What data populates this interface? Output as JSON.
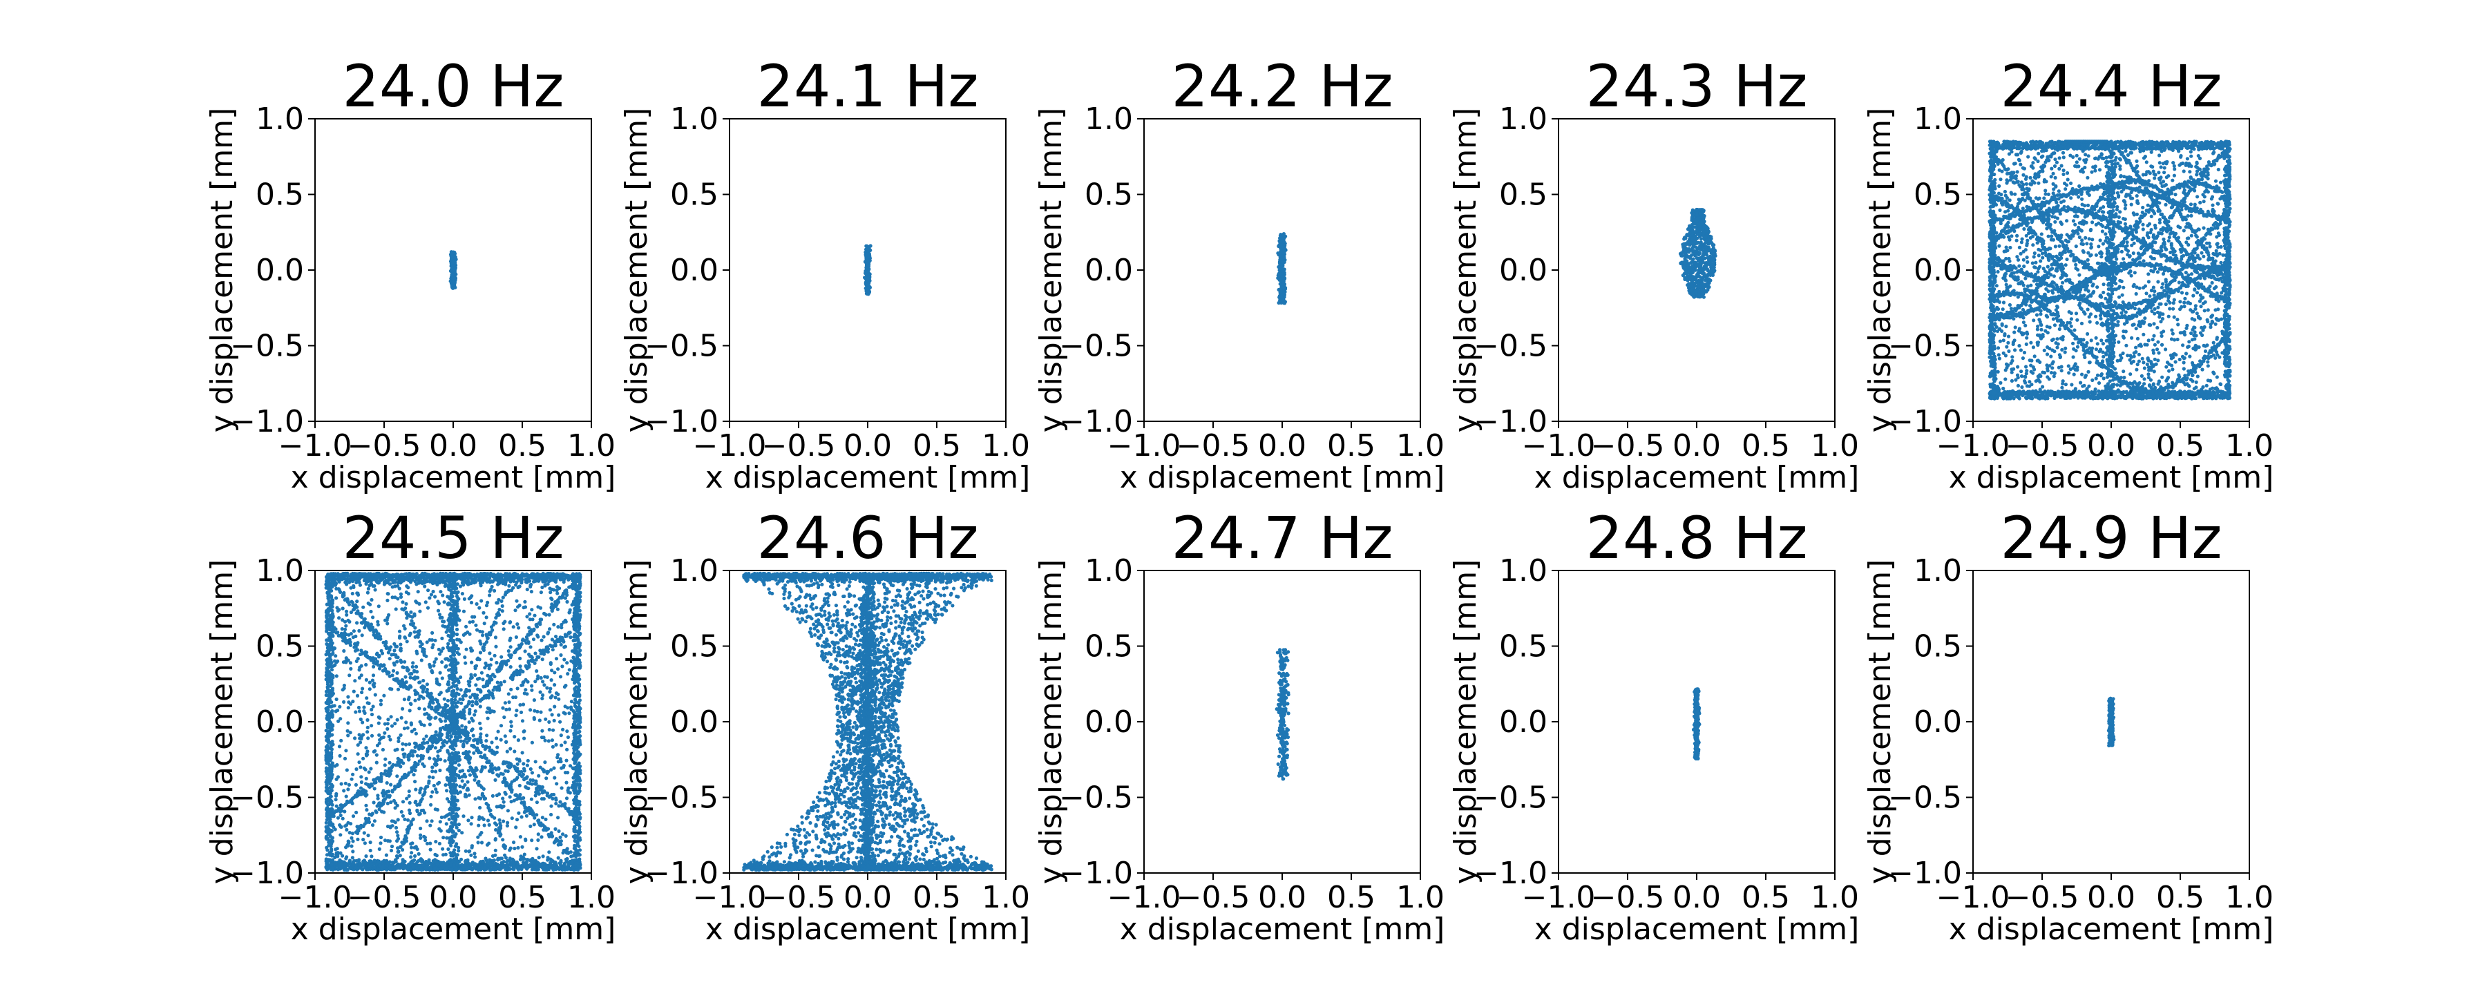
{
  "figure": {
    "point_color": "#1f77b4",
    "axis_color": "#000000"
  },
  "chart_data": [
    {
      "type": "scatter",
      "title": "24.0 Hz",
      "xlabel": "x displacement [mm]",
      "ylabel": "y displacement [mm]",
      "xlim": [
        -1.0,
        1.0
      ],
      "ylim": [
        -1.0,
        1.0
      ],
      "xticks": [
        "−1.0",
        "−0.5",
        "0.0",
        "0.5",
        "1.0"
      ],
      "yticks": [
        "−1.0",
        "−0.5",
        "0.0",
        "0.5",
        "1.0"
      ],
      "pattern": "line",
      "x_center": 0.0,
      "x_extent": [
        -0.02,
        0.02
      ],
      "y_extent": [
        -0.12,
        0.12
      ]
    },
    {
      "type": "scatter",
      "title": "24.1 Hz",
      "xlabel": "x displacement [mm]",
      "ylabel": "y displacement [mm]",
      "xlim": [
        -1.0,
        1.0
      ],
      "ylim": [
        -1.0,
        1.0
      ],
      "xticks": [
        "−1.0",
        "−0.5",
        "0.0",
        "0.5",
        "1.0"
      ],
      "yticks": [
        "−1.0",
        "−0.5",
        "0.0",
        "0.5",
        "1.0"
      ],
      "pattern": "line",
      "x_center": 0.0,
      "x_extent": [
        -0.02,
        0.02
      ],
      "y_extent": [
        -0.16,
        0.16
      ]
    },
    {
      "type": "scatter",
      "title": "24.2 Hz",
      "xlabel": "x displacement [mm]",
      "ylabel": "y displacement [mm]",
      "xlim": [
        -1.0,
        1.0
      ],
      "ylim": [
        -1.0,
        1.0
      ],
      "xticks": [
        "−1.0",
        "−0.5",
        "0.0",
        "0.5",
        "1.0"
      ],
      "yticks": [
        "−1.0",
        "−0.5",
        "0.0",
        "0.5",
        "1.0"
      ],
      "pattern": "line",
      "x_center": 0.0,
      "x_extent": [
        -0.03,
        0.03
      ],
      "y_extent": [
        -0.22,
        0.24
      ]
    },
    {
      "type": "scatter",
      "title": "24.3 Hz",
      "xlabel": "x displacement [mm]",
      "ylabel": "y displacement [mm]",
      "xlim": [
        -1.0,
        1.0
      ],
      "ylim": [
        -1.0,
        1.0
      ],
      "xticks": [
        "−1.0",
        "−0.5",
        "0.0",
        "0.5",
        "1.0"
      ],
      "yticks": [
        "−1.0",
        "−0.5",
        "0.0",
        "0.5",
        "1.0"
      ],
      "pattern": "blob",
      "x_center": 0.02,
      "x_extent": [
        -0.12,
        0.14
      ],
      "y_extent": [
        -0.18,
        0.4
      ]
    },
    {
      "type": "scatter",
      "title": "24.4 Hz",
      "xlabel": "x displacement [mm]",
      "ylabel": "y displacement [mm]",
      "xlim": [
        -1.0,
        1.0
      ],
      "ylim": [
        -1.0,
        1.0
      ],
      "xticks": [
        "−1.0",
        "−0.5",
        "0.0",
        "0.5",
        "1.0"
      ],
      "yticks": [
        "−1.0",
        "−0.5",
        "0.0",
        "0.5",
        "1.0"
      ],
      "pattern": "chaos_box",
      "x_center": 0.0,
      "x_extent": [
        -0.88,
        0.86
      ],
      "y_extent": [
        -0.85,
        0.85
      ]
    },
    {
      "type": "scatter",
      "title": "24.5 Hz",
      "xlabel": "x displacement [mm]",
      "ylabel": "y displacement [mm]",
      "xlim": [
        -1.0,
        1.0
      ],
      "ylim": [
        -1.0,
        1.0
      ],
      "xticks": [
        "−1.0",
        "−0.5",
        "0.0",
        "0.5",
        "1.0"
      ],
      "yticks": [
        "−1.0",
        "−0.5",
        "0.0",
        "0.5",
        "1.0"
      ],
      "pattern": "chaos_x",
      "x_center": 0.0,
      "x_extent": [
        -0.92,
        0.92
      ],
      "y_extent": [
        -0.98,
        0.98
      ]
    },
    {
      "type": "scatter",
      "title": "24.6 Hz",
      "xlabel": "x displacement [mm]",
      "ylabel": "y displacement [mm]",
      "xlim": [
        -1.0,
        1.0
      ],
      "ylim": [
        -1.0,
        1.0
      ],
      "xticks": [
        "−1.0",
        "−0.5",
        "0.0",
        "0.5",
        "1.0"
      ],
      "yticks": [
        "−1.0",
        "−0.5",
        "0.0",
        "0.5",
        "1.0"
      ],
      "pattern": "hourglass",
      "x_center": 0.0,
      "x_extent": [
        -0.9,
        0.9
      ],
      "y_extent": [
        -0.98,
        0.98
      ]
    },
    {
      "type": "scatter",
      "title": "24.7 Hz",
      "xlabel": "x displacement [mm]",
      "ylabel": "y displacement [mm]",
      "xlim": [
        -1.0,
        1.0
      ],
      "ylim": [
        -1.0,
        1.0
      ],
      "xticks": [
        "−1.0",
        "−0.5",
        "0.0",
        "0.5",
        "1.0"
      ],
      "yticks": [
        "−1.0",
        "−0.5",
        "0.0",
        "0.5",
        "1.0"
      ],
      "pattern": "line",
      "x_center": 0.0,
      "x_extent": [
        -0.04,
        0.05
      ],
      "y_extent": [
        -0.38,
        0.48
      ]
    },
    {
      "type": "scatter",
      "title": "24.8 Hz",
      "xlabel": "x displacement [mm]",
      "ylabel": "y displacement [mm]",
      "xlim": [
        -1.0,
        1.0
      ],
      "ylim": [
        -1.0,
        1.0
      ],
      "xticks": [
        "−1.0",
        "−0.5",
        "0.0",
        "0.5",
        "1.0"
      ],
      "yticks": [
        "−1.0",
        "−0.5",
        "0.0",
        "0.5",
        "1.0"
      ],
      "pattern": "line",
      "x_center": 0.0,
      "x_extent": [
        -0.02,
        0.02
      ],
      "y_extent": [
        -0.25,
        0.22
      ]
    },
    {
      "type": "scatter",
      "title": "24.9 Hz",
      "xlabel": "x displacement [mm]",
      "ylabel": "y displacement [mm]",
      "xlim": [
        -1.0,
        1.0
      ],
      "ylim": [
        -1.0,
        1.0
      ],
      "xticks": [
        "−1.0",
        "−0.5",
        "0.0",
        "0.5",
        "1.0"
      ],
      "yticks": [
        "−1.0",
        "−0.5",
        "0.0",
        "0.5",
        "1.0"
      ],
      "pattern": "line",
      "x_center": 0.0,
      "x_extent": [
        -0.02,
        0.02
      ],
      "y_extent": [
        -0.16,
        0.16
      ]
    }
  ]
}
